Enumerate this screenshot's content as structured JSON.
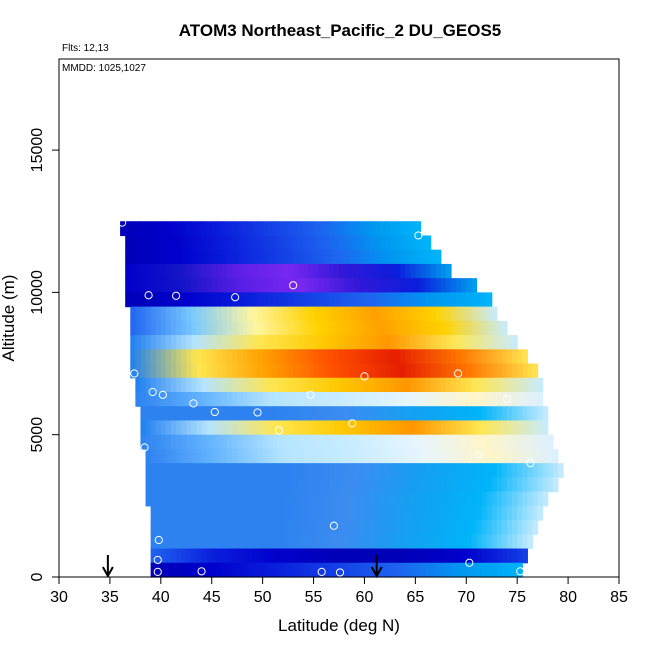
{
  "chart_data": {
    "type": "heatmap",
    "title": "ATOM3 Northeast_Pacific_2 DU_GEOS5",
    "annotations": {
      "flights": "Flts: 12,13",
      "dates": "MMDD: 1025,1027"
    },
    "xlabel": "Latitude (deg N)",
    "ylabel": "Altitude (m)",
    "xlim": [
      30,
      85
    ],
    "ylim": [
      0,
      18200
    ],
    "x_ticks": [
      30,
      35,
      40,
      45,
      50,
      55,
      60,
      65,
      70,
      75,
      80,
      85
    ],
    "x_tick_labels": [
      "30",
      "35",
      "40",
      "45",
      "50",
      "55",
      "60",
      "65",
      "70",
      "75",
      "80",
      "85"
    ],
    "y_ticks": [
      0,
      5000,
      10000,
      15000
    ],
    "y_tick_labels": [
      "0",
      "5000",
      "10000",
      "15000"
    ],
    "grid": false,
    "bands": [
      {
        "y0": 12000,
        "y1": 12500,
        "x0": 36.0,
        "x1": 65.5,
        "pal": "dark"
      },
      {
        "y0": 11500,
        "y1": 12000,
        "x0": 36.5,
        "x1": 66.5,
        "pal": "dark"
      },
      {
        "y0": 11000,
        "y1": 11500,
        "x0": 36.5,
        "x1": 67.5,
        "pal": "dark"
      },
      {
        "y0": 10500,
        "y1": 11000,
        "x0": 36.5,
        "x1": 68.5,
        "pal": "purple"
      },
      {
        "y0": 10000,
        "y1": 10500,
        "x0": 36.5,
        "x1": 71.0,
        "pal": "purple"
      },
      {
        "y0": 9500,
        "y1": 10000,
        "x0": 36.5,
        "x1": 72.5,
        "pal": "dark"
      },
      {
        "y0": 9000,
        "y1": 9500,
        "x0": 37.0,
        "x1": 73.0,
        "pal": "warm1"
      },
      {
        "y0": 8500,
        "y1": 9000,
        "x0": 37.0,
        "x1": 74.0,
        "pal": "warm1"
      },
      {
        "y0": 8000,
        "y1": 8500,
        "x0": 37.0,
        "x1": 75.0,
        "pal": "warm2"
      },
      {
        "y0": 7500,
        "y1": 8000,
        "x0": 37.0,
        "x1": 76.0,
        "pal": "warm3"
      },
      {
        "y0": 7000,
        "y1": 7500,
        "x0": 37.0,
        "x1": 77.0,
        "pal": "warm3"
      },
      {
        "y0": 6500,
        "y1": 7000,
        "x0": 37.5,
        "x1": 77.5,
        "pal": "warm2"
      },
      {
        "y0": 6000,
        "y1": 6500,
        "x0": 37.5,
        "x1": 77.5,
        "pal": "light"
      },
      {
        "y0": 5500,
        "y1": 6000,
        "x0": 38.0,
        "x1": 78.0,
        "pal": "mid"
      },
      {
        "y0": 5000,
        "y1": 5500,
        "x0": 38.0,
        "x1": 78.0,
        "pal": "warm2"
      },
      {
        "y0": 4500,
        "y1": 5000,
        "x0": 38.0,
        "x1": 78.5,
        "pal": "light"
      },
      {
        "y0": 4000,
        "y1": 4500,
        "x0": 38.5,
        "x1": 79.0,
        "pal": "light"
      },
      {
        "y0": 3500,
        "y1": 4000,
        "x0": 38.5,
        "x1": 79.5,
        "pal": "mid"
      },
      {
        "y0": 3000,
        "y1": 3500,
        "x0": 38.5,
        "x1": 79.0,
        "pal": "mid"
      },
      {
        "y0": 2500,
        "y1": 3000,
        "x0": 38.5,
        "x1": 78.0,
        "pal": "mid"
      },
      {
        "y0": 2000,
        "y1": 2500,
        "x0": 39.0,
        "x1": 77.5,
        "pal": "mid"
      },
      {
        "y0": 1500,
        "y1": 2000,
        "x0": 39.0,
        "x1": 77.0,
        "pal": "mid"
      },
      {
        "y0": 1000,
        "y1": 1500,
        "x0": 39.0,
        "x1": 76.5,
        "pal": "mid"
      },
      {
        "y0": 500,
        "y1": 1000,
        "x0": 39.0,
        "x1": 76.0,
        "pal": "dark2"
      },
      {
        "y0": 0,
        "y1": 500,
        "x0": 39.0,
        "x1": 75.5,
        "pal": "dark"
      }
    ],
    "points": [
      [
        36.2,
        12450
      ],
      [
        65.3,
        12000
      ],
      [
        72.3,
        10300
      ],
      [
        53.0,
        10250
      ],
      [
        38.8,
        9900
      ],
      [
        41.5,
        9880
      ],
      [
        47.3,
        9830
      ],
      [
        37.4,
        7150
      ],
      [
        60.0,
        7050
      ],
      [
        69.2,
        7150
      ],
      [
        39.2,
        6500
      ],
      [
        40.2,
        6400
      ],
      [
        54.7,
        6400
      ],
      [
        43.2,
        6100
      ],
      [
        45.3,
        5800
      ],
      [
        49.5,
        5780
      ],
      [
        74.0,
        6250
      ],
      [
        58.8,
        5400
      ],
      [
        51.6,
        5150
      ],
      [
        38.4,
        4550
      ],
      [
        71.2,
        4300
      ],
      [
        76.3,
        4000
      ],
      [
        57.0,
        1800
      ],
      [
        39.8,
        1300
      ],
      [
        39.7,
        600
      ],
      [
        70.3,
        500
      ],
      [
        44.0,
        200
      ],
      [
        39.7,
        180
      ],
      [
        55.8,
        180
      ],
      [
        57.6,
        160
      ],
      [
        75.3,
        200
      ]
    ],
    "arrows": [
      34.8,
      61.2
    ]
  }
}
